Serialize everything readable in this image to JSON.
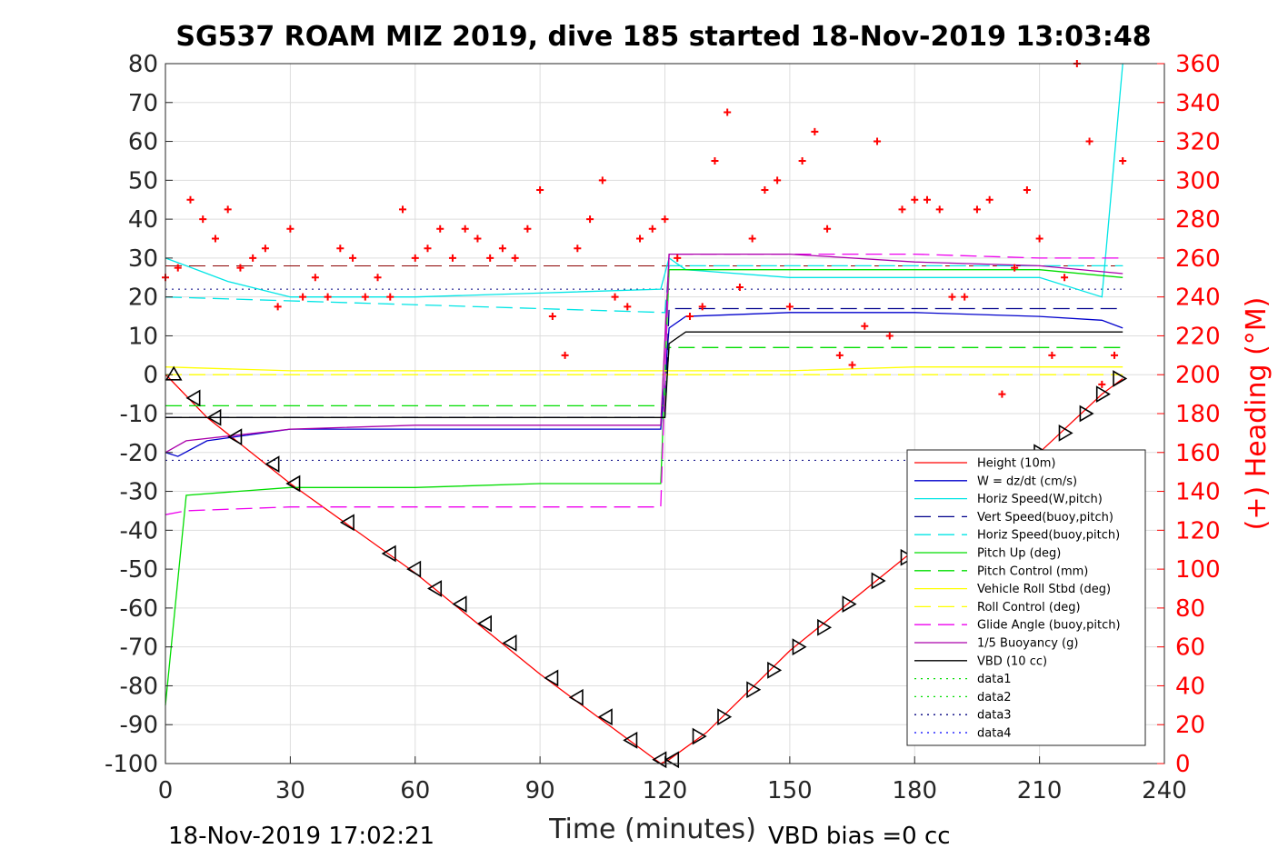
{
  "chart_data": {
    "type": "line",
    "title": "SG537 ROAM MIZ 2019, dive 185 started 18-Nov-2019 13:03:48",
    "xlabel": "Time (minutes)",
    "ylabel_left": "",
    "ylabel_right": "(+) Heading (°M)",
    "xlim": [
      0,
      240
    ],
    "ylim_left": [
      -100,
      80
    ],
    "ylim_right": [
      0,
      360
    ],
    "x_ticks": [
      0,
      30,
      60,
      90,
      120,
      150,
      180,
      210,
      240
    ],
    "y_ticks_left": [
      80,
      70,
      60,
      50,
      40,
      30,
      20,
      10,
      0,
      -10,
      -20,
      -30,
      -40,
      -50,
      -60,
      -70,
      -80,
      -90,
      -100
    ],
    "y_ticks_right": [
      360,
      340,
      320,
      300,
      280,
      260,
      240,
      220,
      200,
      180,
      160,
      140,
      120,
      100,
      80,
      60,
      40,
      20,
      0
    ],
    "grid": true,
    "legend_position": "lower-right",
    "footer_left": "18-Nov-2019 17:02:21",
    "footer_right": "VBD bias =0 cc",
    "series": [
      {
        "name": "Height (10m)",
        "color": "#ff0000",
        "style": "solid",
        "x": [
          0,
          1,
          10,
          30,
          60,
          90,
          119,
          121,
          130,
          150,
          180,
          210,
          225,
          230
        ],
        "y": [
          0,
          -1,
          -11,
          -28,
          -51,
          -77,
          -100,
          -99,
          -92,
          -71,
          -45,
          -20,
          -5,
          -1
        ]
      },
      {
        "name": "W = dz/dt (cm/s)",
        "color": "#0000cc",
        "style": "solid",
        "x": [
          0,
          3,
          10,
          30,
          60,
          90,
          119,
          121,
          125,
          150,
          180,
          210,
          225,
          230
        ],
        "y": [
          -20,
          -21,
          -17,
          -14,
          -14,
          -14,
          -14,
          12,
          15,
          16,
          16,
          15,
          14,
          12
        ]
      },
      {
        "name": "Horiz Speed(W,pitch)",
        "color": "#00e5e5",
        "style": "solid",
        "x": [
          0,
          5,
          15,
          30,
          60,
          90,
          119,
          121,
          125,
          150,
          180,
          210,
          225,
          230
        ],
        "y": [
          30,
          28,
          24,
          20,
          20,
          21,
          22,
          30,
          27,
          25,
          25,
          25,
          20,
          80
        ]
      },
      {
        "name": "Vert Speed(buoy,pitch)",
        "color": "#00008b",
        "style": "dashed",
        "x": [
          0,
          120,
          121,
          230
        ],
        "y": [
          -11,
          -11,
          17,
          17
        ]
      },
      {
        "name": "Horiz Speed(buoy,pitch)",
        "color": "#00e5e5",
        "style": "dashed",
        "x": [
          0,
          120,
          121,
          230
        ],
        "y": [
          20,
          16,
          28,
          28
        ]
      },
      {
        "name": "Pitch Up (deg)",
        "color": "#00dd00",
        "style": "solid",
        "x": [
          0,
          5,
          30,
          60,
          90,
          119,
          121,
          125,
          150,
          180,
          210,
          230
        ],
        "y": [
          -85,
          -31,
          -29,
          -29,
          -28,
          -28,
          27,
          27,
          27,
          27,
          27,
          25
        ]
      },
      {
        "name": "Pitch Control (mm)",
        "color": "#00dd00",
        "style": "dashed",
        "x": [
          0,
          120,
          121,
          230
        ],
        "y": [
          -8,
          -8,
          7,
          7
        ]
      },
      {
        "name": "Vehicle Roll Stbd (deg)",
        "color": "#ffff00",
        "style": "solid",
        "x": [
          0,
          30,
          60,
          90,
          120,
          150,
          180,
          210,
          230
        ],
        "y": [
          2,
          1,
          1,
          1,
          1,
          1,
          2,
          2,
          2
        ]
      },
      {
        "name": "Roll Control (deg)",
        "color": "#ffff00",
        "style": "dashed",
        "x": [
          0,
          230
        ],
        "y": [
          0,
          0
        ]
      },
      {
        "name": "Glide Angle (buoy,pitch)",
        "color": "#ee00ee",
        "style": "dashed",
        "x": [
          0,
          5,
          30,
          60,
          90,
          119,
          121,
          150,
          180,
          210,
          230
        ],
        "y": [
          -36,
          -35,
          -34,
          -34,
          -34,
          -34,
          31,
          31,
          31,
          30,
          30
        ]
      },
      {
        "name": "1/5 Buoyancy (g)",
        "color": "#aa00aa",
        "style": "solid",
        "x": [
          0,
          5,
          30,
          60,
          90,
          119,
          121,
          150,
          180,
          210,
          230
        ],
        "y": [
          -20,
          -17,
          -14,
          -13,
          -13,
          -13,
          31,
          31,
          29,
          28,
          26
        ]
      },
      {
        "name": "VBD (10 cc)",
        "color": "#000000",
        "style": "solid",
        "x": [
          0,
          3,
          120,
          121,
          125,
          230
        ],
        "y": [
          -11,
          -11,
          -11,
          8,
          11,
          11
        ]
      },
      {
        "name": "data1",
        "color": "#00dd00",
        "style": "dotted",
        "x": [],
        "y": []
      },
      {
        "name": "data2",
        "color": "#00dd00",
        "style": "dotted",
        "x": [],
        "y": []
      },
      {
        "name": "data3",
        "color": "#000080",
        "style": "dotted",
        "x": [],
        "y": []
      },
      {
        "name": "data4",
        "color": "#0000ff",
        "style": "dotted",
        "x": [],
        "y": []
      }
    ],
    "reference_lines": [
      {
        "color": "#8b0000",
        "style": "dashed",
        "y": 28
      },
      {
        "color": "#000080",
        "style": "dotted",
        "y": 22
      },
      {
        "color": "#000080",
        "style": "dotted",
        "y": -22
      }
    ],
    "heading_series": {
      "color": "#ff0000",
      "marker": "plus",
      "x": [
        0,
        3,
        6,
        9,
        12,
        15,
        18,
        21,
        24,
        27,
        30,
        33,
        36,
        39,
        42,
        45,
        48,
        51,
        54,
        57,
        60,
        63,
        66,
        69,
        72,
        75,
        78,
        81,
        84,
        87,
        90,
        93,
        96,
        99,
        102,
        105,
        108,
        111,
        114,
        117,
        120,
        123,
        126,
        129,
        132,
        135,
        138,
        141,
        144,
        147,
        150,
        153,
        156,
        159,
        162,
        165,
        168,
        171,
        174,
        177,
        180,
        183,
        186,
        189,
        192,
        195,
        198,
        201,
        204,
        207,
        210,
        213,
        216,
        219,
        222,
        225,
        228,
        230
      ],
      "y": [
        250,
        255,
        290,
        280,
        270,
        285,
        255,
        260,
        265,
        235,
        275,
        240,
        250,
        240,
        265,
        260,
        240,
        250,
        240,
        285,
        260,
        265,
        275,
        260,
        275,
        270,
        260,
        265,
        260,
        275,
        295,
        230,
        210,
        265,
        280,
        300,
        240,
        235,
        270,
        275,
        280,
        260,
        230,
        235,
        310,
        335,
        245,
        270,
        295,
        300,
        235,
        310,
        325,
        275,
        210,
        205,
        225,
        320,
        220,
        285,
        290,
        290,
        285,
        240,
        240,
        285,
        290,
        190,
        255,
        295,
        270,
        210,
        250,
        360,
        320,
        195,
        210,
        310
      ]
    },
    "markers": [
      {
        "shape": "triangle-up",
        "x": 2,
        "y": 0
      },
      {
        "shape": "triangle-left",
        "x": 7,
        "y": -6
      },
      {
        "shape": "triangle-left",
        "x": 12,
        "y": -11
      },
      {
        "shape": "triangle-left",
        "x": 17,
        "y": -16
      },
      {
        "shape": "triangle-left",
        "x": 26,
        "y": -23
      },
      {
        "shape": "triangle-left",
        "x": 31,
        "y": -28
      },
      {
        "shape": "triangle-left",
        "x": 44,
        "y": -38
      },
      {
        "shape": "triangle-left",
        "x": 54,
        "y": -46
      },
      {
        "shape": "triangle-left",
        "x": 60,
        "y": -50
      },
      {
        "shape": "triangle-left",
        "x": 65,
        "y": -55
      },
      {
        "shape": "triangle-left",
        "x": 71,
        "y": -59
      },
      {
        "shape": "triangle-left",
        "x": 77,
        "y": -64
      },
      {
        "shape": "triangle-left",
        "x": 83,
        "y": -69
      },
      {
        "shape": "triangle-left",
        "x": 93,
        "y": -78
      },
      {
        "shape": "triangle-left",
        "x": 99,
        "y": -83
      },
      {
        "shape": "triangle-left",
        "x": 106,
        "y": -88
      },
      {
        "shape": "triangle-left",
        "x": 112,
        "y": -94
      },
      {
        "shape": "triangle-left",
        "x": 119,
        "y": -99
      },
      {
        "shape": "triangle-left",
        "x": 122,
        "y": -99
      },
      {
        "shape": "triangle-right",
        "x": 128,
        "y": -93
      },
      {
        "shape": "triangle-right",
        "x": 134,
        "y": -88
      },
      {
        "shape": "triangle-right",
        "x": 141,
        "y": -81
      },
      {
        "shape": "triangle-right",
        "x": 146,
        "y": -76
      },
      {
        "shape": "triangle-right",
        "x": 152,
        "y": -70
      },
      {
        "shape": "triangle-right",
        "x": 158,
        "y": -65
      },
      {
        "shape": "triangle-right",
        "x": 164,
        "y": -59
      },
      {
        "shape": "triangle-right",
        "x": 171,
        "y": -53
      },
      {
        "shape": "triangle-right",
        "x": 178,
        "y": -47
      },
      {
        "shape": "triangle-right",
        "x": 184,
        "y": -42
      },
      {
        "shape": "triangle-right",
        "x": 191,
        "y": -36
      },
      {
        "shape": "triangle-right",
        "x": 197,
        "y": -30
      },
      {
        "shape": "triangle-right",
        "x": 204,
        "y": -25
      },
      {
        "shape": "triangle-right",
        "x": 210,
        "y": -20
      },
      {
        "shape": "triangle-right",
        "x": 216,
        "y": -15
      },
      {
        "shape": "triangle-right",
        "x": 221,
        "y": -10
      },
      {
        "shape": "triangle-right",
        "x": 225,
        "y": -5
      },
      {
        "shape": "triangle-right",
        "x": 229,
        "y": -1
      }
    ]
  }
}
